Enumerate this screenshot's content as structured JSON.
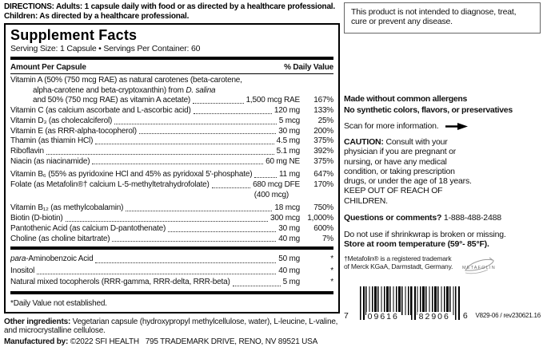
{
  "directions": {
    "label": "DIRECTIONS:",
    "text": " Adults: 1 capsule daily with food or as directed by a healthcare professional. Children: As directed by a healthcare professional."
  },
  "supplement_facts": {
    "title": "Supplement Facts",
    "serving_line": "Serving Size: 1 Capsule • Servings Per Container: 60",
    "header_left": "Amount Per Capsule",
    "header_right": "% Daily Value",
    "rows": [
      {
        "lines": [
          {
            "parts": [
              {
                "t": "Vitamin A (50% (750 mcg RAE) as natural carotenes (beta-carotene,"
              }
            ]
          },
          {
            "parts": [
              {
                "t": "alpha-carotene and beta-cryptoxanthin) from "
              },
              {
                "t": "D. salina",
                "i": true
              }
            ],
            "indent": 1
          },
          {
            "parts": [
              {
                "t": "and 50% (750 mcg RAE) as vitamin A acetate)"
              }
            ],
            "indent": 1,
            "dots": true,
            "amount": "1,500 mcg RAE",
            "dv": "167%"
          }
        ]
      },
      {
        "lines": [
          {
            "parts": [
              {
                "t": "Vitamin C (as calcium ascorbate and L-ascorbic acid)"
              }
            ],
            "dots": true,
            "amount": "120 mg",
            "dv": "133%"
          }
        ]
      },
      {
        "lines": [
          {
            "parts": [
              {
                "t": "Vitamin D₃ (as cholecalciferol)"
              }
            ],
            "dots": true,
            "amount": "5 mcg",
            "dv": "25%"
          }
        ]
      },
      {
        "lines": [
          {
            "parts": [
              {
                "t": "Vitamin E (as RRR-alpha-tocopherol)"
              }
            ],
            "dots": true,
            "amount": "30 mg",
            "dv": "200%"
          }
        ]
      },
      {
        "lines": [
          {
            "parts": [
              {
                "t": "Thamin (as thiamin HCl)"
              }
            ],
            "dots": true,
            "amount": "4.5 mg",
            "dv": "375%"
          }
        ]
      },
      {
        "lines": [
          {
            "parts": [
              {
                "t": "Riboflavin"
              }
            ],
            "dots": true,
            "amount": "5.1 mg",
            "dv": "392%"
          }
        ]
      },
      {
        "lines": [
          {
            "parts": [
              {
                "t": "Niacin (as niacinamide)"
              }
            ],
            "dots": true,
            "amount": "60 mg NE",
            "dv": "375%"
          }
        ]
      },
      {
        "lines": [
          {
            "parts": [
              {
                "t": "Vitamin B₆ (55% as pyridoxine HCl and 45% as pyridoxal 5'-phosphate)"
              }
            ],
            "dots": true,
            "amount": "11 mg",
            "dv": "647%"
          }
        ]
      },
      {
        "lines": [
          {
            "parts": [
              {
                "t": "Folate (as Metafolin®† calcium L-5-methyltetrahydrofolate)"
              }
            ],
            "dots": true,
            "amount": "680 mcg DFE",
            "dv": "170%"
          },
          {
            "parts": [],
            "amount": "(400 mcg)",
            "dv": "",
            "sub": true
          }
        ]
      },
      {
        "lines": [
          {
            "parts": [
              {
                "t": "Vitamin B₁₂ (as methylcobalamin)"
              }
            ],
            "dots": true,
            "amount": "18 mcg",
            "dv": "750%"
          }
        ]
      },
      {
        "lines": [
          {
            "parts": [
              {
                "t": "Biotin (D-biotin)"
              }
            ],
            "dots": true,
            "amount": "300 mcg",
            "dv": "1,000%"
          }
        ]
      },
      {
        "lines": [
          {
            "parts": [
              {
                "t": "Pantothenic Acid (as calcium D-pantothenate)"
              }
            ],
            "dots": true,
            "amount": "30 mg",
            "dv": "600%"
          }
        ]
      },
      {
        "lines": [
          {
            "parts": [
              {
                "t": "Choline (as choline bitartrate)"
              }
            ],
            "dots": true,
            "amount": "40 mg",
            "dv": "7%"
          }
        ]
      }
    ],
    "extra_rows": [
      {
        "lines": [
          {
            "parts": [
              {
                "t": "para",
                "i": true
              },
              {
                "t": "-Aminobenzoic Acid"
              }
            ],
            "dots": true,
            "amount": "50 mg",
            "dv": "*"
          }
        ]
      },
      {
        "lines": [
          {
            "parts": [
              {
                "t": "Inositol"
              }
            ],
            "dots": true,
            "amount": "40 mg",
            "dv": "*"
          }
        ]
      },
      {
        "lines": [
          {
            "parts": [
              {
                "t": "Natural mixed tocopherols (RRR-gamma, RRR-delta, RRR-beta)"
              }
            ],
            "dots": true,
            "amount": "5 mg",
            "dv": "*"
          }
        ]
      }
    ],
    "footnote": "*Daily Value not established."
  },
  "other_ingredients": {
    "label": "Other ingredients:",
    "text": " Vegetarian capsule (hydroxypropyl methylcellulose, water), L-leucine, L-valine, and microcrystalline cellulose."
  },
  "manufactured": {
    "label": "Manufactured by:",
    "text": " ©2022 SFI HEALTH   795 TRADEMARK DRIVE, RENO, NV 89521 USA"
  },
  "right_panel": {
    "disclaimer": "This product is not intended to diagnose, treat, cure or prevent any disease.",
    "claims": [
      "Made without common allergens",
      "No synthetic colors, flavors, or preservatives"
    ],
    "scan_text": "Scan for more information.",
    "caution_label": "CAUTION:",
    "caution_text": " Consult with your physician if you are pregnant or nursing, or have any medical condition, or taking prescription drugs, or under the age of 18 years.",
    "caution_keep": "KEEP OUT OF REACH OF CHILDREN.",
    "questions_label": "Questions or comments?",
    "questions_phone": " 1-888-488-2488",
    "shrinkwrap": "Do not use if shrinkwrap is broken or missing.",
    "storage": "Store at room temperature (59°- 85°F).",
    "trademark_line1": "†Metafolin® is a registered trademark",
    "trademark_line2": "of Merck KGaA, Darmstadt, Germany.",
    "metafolin_logo_text": "METAFOLIN",
    "barcode": {
      "left_digit": "7",
      "group1": "09616",
      "group2": "82906",
      "right_digit": "6",
      "code": "V829-06 / rev230621.16"
    }
  }
}
